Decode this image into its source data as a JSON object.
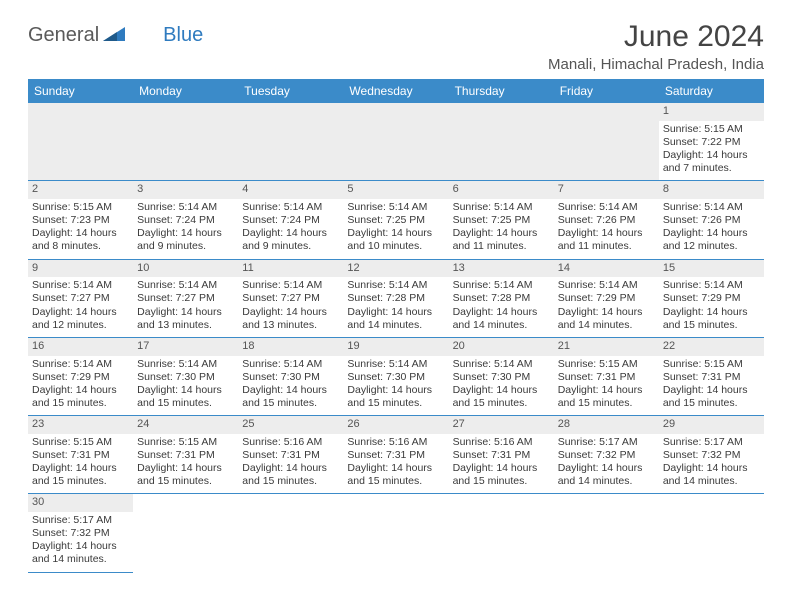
{
  "logo": {
    "text_general": "General",
    "text_blue": "Blue"
  },
  "header": {
    "title": "June 2024",
    "location": "Manali, Himachal Pradesh, India"
  },
  "colors": {
    "header_bg": "#3b8bc9",
    "header_text": "#ffffff",
    "daynum_bg": "#ededed",
    "cell_border": "#3b8bc9",
    "body_text": "#3a3a3a",
    "title_text": "#444444"
  },
  "typography": {
    "title_size": 30,
    "location_size": 15,
    "dayhead_size": 12,
    "cell_size": 10.5
  },
  "calendar": {
    "type": "table",
    "columns": [
      "Sunday",
      "Monday",
      "Tuesday",
      "Wednesday",
      "Thursday",
      "Friday",
      "Saturday"
    ],
    "weeks": [
      [
        null,
        null,
        null,
        null,
        null,
        null,
        {
          "day": "1",
          "sunrise": "Sunrise: 5:15 AM",
          "sunset": "Sunset: 7:22 PM",
          "daylight": "Daylight: 14 hours and 7 minutes."
        }
      ],
      [
        {
          "day": "2",
          "sunrise": "Sunrise: 5:15 AM",
          "sunset": "Sunset: 7:23 PM",
          "daylight": "Daylight: 14 hours and 8 minutes."
        },
        {
          "day": "3",
          "sunrise": "Sunrise: 5:14 AM",
          "sunset": "Sunset: 7:24 PM",
          "daylight": "Daylight: 14 hours and 9 minutes."
        },
        {
          "day": "4",
          "sunrise": "Sunrise: 5:14 AM",
          "sunset": "Sunset: 7:24 PM",
          "daylight": "Daylight: 14 hours and 9 minutes."
        },
        {
          "day": "5",
          "sunrise": "Sunrise: 5:14 AM",
          "sunset": "Sunset: 7:25 PM",
          "daylight": "Daylight: 14 hours and 10 minutes."
        },
        {
          "day": "6",
          "sunrise": "Sunrise: 5:14 AM",
          "sunset": "Sunset: 7:25 PM",
          "daylight": "Daylight: 14 hours and 11 minutes."
        },
        {
          "day": "7",
          "sunrise": "Sunrise: 5:14 AM",
          "sunset": "Sunset: 7:26 PM",
          "daylight": "Daylight: 14 hours and 11 minutes."
        },
        {
          "day": "8",
          "sunrise": "Sunrise: 5:14 AM",
          "sunset": "Sunset: 7:26 PM",
          "daylight": "Daylight: 14 hours and 12 minutes."
        }
      ],
      [
        {
          "day": "9",
          "sunrise": "Sunrise: 5:14 AM",
          "sunset": "Sunset: 7:27 PM",
          "daylight": "Daylight: 14 hours and 12 minutes."
        },
        {
          "day": "10",
          "sunrise": "Sunrise: 5:14 AM",
          "sunset": "Sunset: 7:27 PM",
          "daylight": "Daylight: 14 hours and 13 minutes."
        },
        {
          "day": "11",
          "sunrise": "Sunrise: 5:14 AM",
          "sunset": "Sunset: 7:27 PM",
          "daylight": "Daylight: 14 hours and 13 minutes."
        },
        {
          "day": "12",
          "sunrise": "Sunrise: 5:14 AM",
          "sunset": "Sunset: 7:28 PM",
          "daylight": "Daylight: 14 hours and 14 minutes."
        },
        {
          "day": "13",
          "sunrise": "Sunrise: 5:14 AM",
          "sunset": "Sunset: 7:28 PM",
          "daylight": "Daylight: 14 hours and 14 minutes."
        },
        {
          "day": "14",
          "sunrise": "Sunrise: 5:14 AM",
          "sunset": "Sunset: 7:29 PM",
          "daylight": "Daylight: 14 hours and 14 minutes."
        },
        {
          "day": "15",
          "sunrise": "Sunrise: 5:14 AM",
          "sunset": "Sunset: 7:29 PM",
          "daylight": "Daylight: 14 hours and 15 minutes."
        }
      ],
      [
        {
          "day": "16",
          "sunrise": "Sunrise: 5:14 AM",
          "sunset": "Sunset: 7:29 PM",
          "daylight": "Daylight: 14 hours and 15 minutes."
        },
        {
          "day": "17",
          "sunrise": "Sunrise: 5:14 AM",
          "sunset": "Sunset: 7:30 PM",
          "daylight": "Daylight: 14 hours and 15 minutes."
        },
        {
          "day": "18",
          "sunrise": "Sunrise: 5:14 AM",
          "sunset": "Sunset: 7:30 PM",
          "daylight": "Daylight: 14 hours and 15 minutes."
        },
        {
          "day": "19",
          "sunrise": "Sunrise: 5:14 AM",
          "sunset": "Sunset: 7:30 PM",
          "daylight": "Daylight: 14 hours and 15 minutes."
        },
        {
          "day": "20",
          "sunrise": "Sunrise: 5:14 AM",
          "sunset": "Sunset: 7:30 PM",
          "daylight": "Daylight: 14 hours and 15 minutes."
        },
        {
          "day": "21",
          "sunrise": "Sunrise: 5:15 AM",
          "sunset": "Sunset: 7:31 PM",
          "daylight": "Daylight: 14 hours and 15 minutes."
        },
        {
          "day": "22",
          "sunrise": "Sunrise: 5:15 AM",
          "sunset": "Sunset: 7:31 PM",
          "daylight": "Daylight: 14 hours and 15 minutes."
        }
      ],
      [
        {
          "day": "23",
          "sunrise": "Sunrise: 5:15 AM",
          "sunset": "Sunset: 7:31 PM",
          "daylight": "Daylight: 14 hours and 15 minutes."
        },
        {
          "day": "24",
          "sunrise": "Sunrise: 5:15 AM",
          "sunset": "Sunset: 7:31 PM",
          "daylight": "Daylight: 14 hours and 15 minutes."
        },
        {
          "day": "25",
          "sunrise": "Sunrise: 5:16 AM",
          "sunset": "Sunset: 7:31 PM",
          "daylight": "Daylight: 14 hours and 15 minutes."
        },
        {
          "day": "26",
          "sunrise": "Sunrise: 5:16 AM",
          "sunset": "Sunset: 7:31 PM",
          "daylight": "Daylight: 14 hours and 15 minutes."
        },
        {
          "day": "27",
          "sunrise": "Sunrise: 5:16 AM",
          "sunset": "Sunset: 7:31 PM",
          "daylight": "Daylight: 14 hours and 15 minutes."
        },
        {
          "day": "28",
          "sunrise": "Sunrise: 5:17 AM",
          "sunset": "Sunset: 7:32 PM",
          "daylight": "Daylight: 14 hours and 14 minutes."
        },
        {
          "day": "29",
          "sunrise": "Sunrise: 5:17 AM",
          "sunset": "Sunset: 7:32 PM",
          "daylight": "Daylight: 14 hours and 14 minutes."
        }
      ],
      [
        {
          "day": "30",
          "sunrise": "Sunrise: 5:17 AM",
          "sunset": "Sunset: 7:32 PM",
          "daylight": "Daylight: 14 hours and 14 minutes."
        },
        null,
        null,
        null,
        null,
        null,
        null
      ]
    ]
  }
}
